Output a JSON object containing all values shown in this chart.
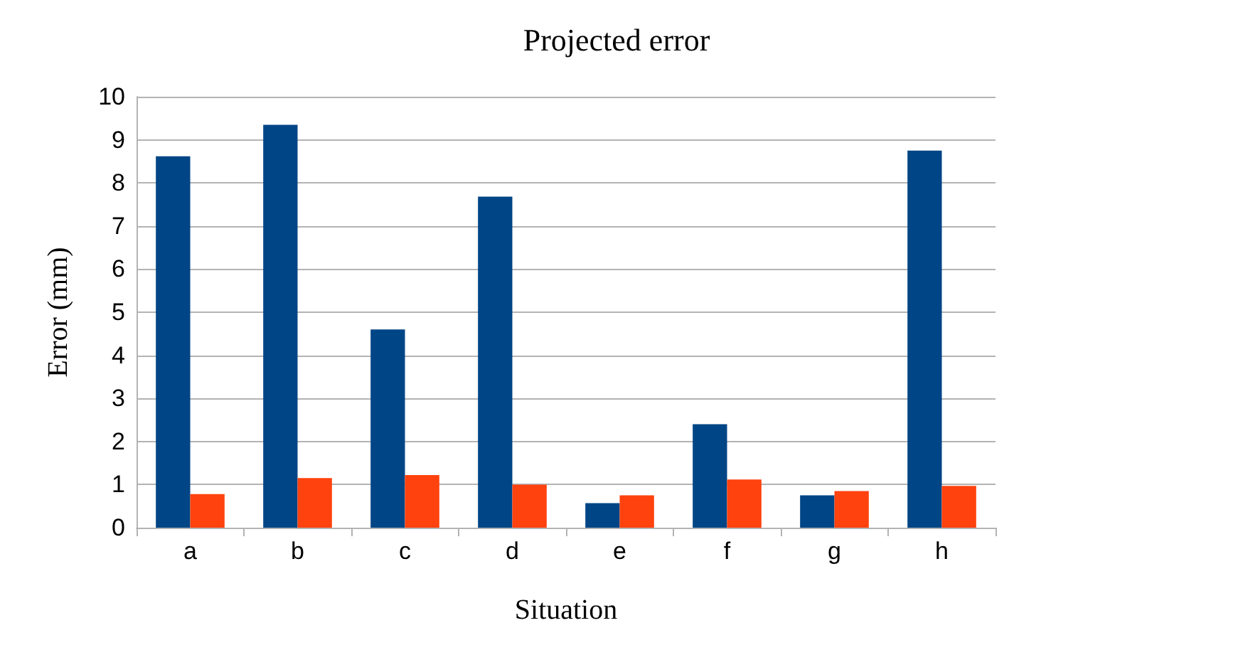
{
  "chart_data": {
    "type": "bar",
    "title": "Projected error",
    "xlabel": "Situation",
    "ylabel": "Error (mm)",
    "categories": [
      "a",
      "b",
      "c",
      "d",
      "e",
      "f",
      "g",
      "h"
    ],
    "series": [
      {
        "color": "#004586",
        "values": [
          8.62,
          9.35,
          4.6,
          7.68,
          0.57,
          2.4,
          0.75,
          8.75
        ]
      },
      {
        "color": "#ff420e",
        "values": [
          0.78,
          1.15,
          1.22,
          1.0,
          0.75,
          1.12,
          0.85,
          0.97
        ]
      }
    ],
    "ylim": [
      0,
      10
    ],
    "yticks": [
      0,
      1,
      2,
      3,
      4,
      5,
      6,
      7,
      8,
      9,
      10
    ],
    "grid": "y"
  }
}
